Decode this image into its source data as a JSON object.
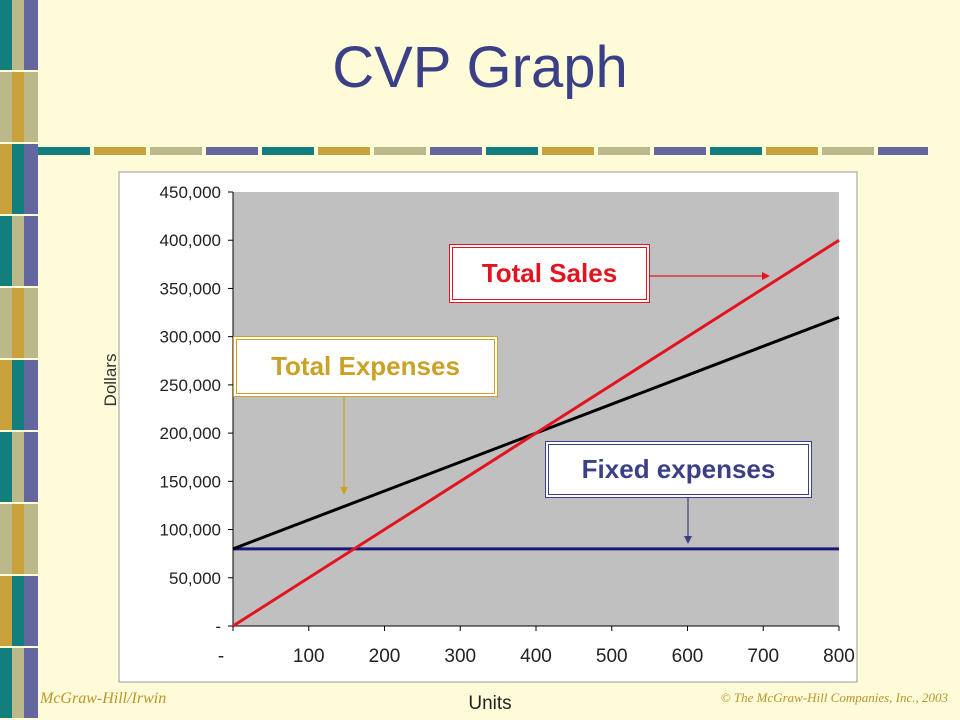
{
  "slide": {
    "title": "CVP Graph",
    "footer_left": "McGraw-Hill/Irwin",
    "footer_right": "© The McGraw-Hill Companies, Inc., 2003"
  },
  "colors": {
    "background": "#fdfbd8",
    "teal": "#127f7c",
    "gold": "#c9a23c",
    "sage": "#b9b98a",
    "navy": "#6466a0",
    "title": "#3b3f86",
    "plot_bg": "#c0c0c0",
    "sales": "#e2141f",
    "total_expenses": "#000000",
    "fixed_expenses": "#1a1a7a",
    "callout_expenses": "#c9a227"
  },
  "callouts": {
    "sales": "Total Sales",
    "expenses": "Total Expenses",
    "fixed": "Fixed expenses"
  },
  "chart_data": {
    "type": "line",
    "title": "",
    "xlabel": "Units",
    "ylabel": "Dollars",
    "xlim": [
      0,
      800
    ],
    "ylim": [
      0,
      450000
    ],
    "x_ticks": [
      0,
      100,
      200,
      300,
      400,
      500,
      600,
      700,
      800
    ],
    "x_tick_labels": [
      "-",
      "100",
      "200",
      "300",
      "400",
      "500",
      "600",
      "700",
      "800"
    ],
    "y_ticks": [
      0,
      50000,
      100000,
      150000,
      200000,
      250000,
      300000,
      350000,
      400000,
      450000
    ],
    "y_tick_labels": [
      "-",
      "50,000",
      "100,000",
      "150,000",
      "200,000",
      "250,000",
      "300,000",
      "350,000",
      "400,000",
      "450,000"
    ],
    "grid": false,
    "series": [
      {
        "name": "Total Sales",
        "color": "#e2141f",
        "x": [
          0,
          800
        ],
        "values": [
          0,
          400000
        ]
      },
      {
        "name": "Total Expenses",
        "color": "#000000",
        "x": [
          0,
          800
        ],
        "values": [
          80000,
          320000
        ]
      },
      {
        "name": "Fixed expenses",
        "color": "#1a1a7a",
        "x": [
          0,
          800
        ],
        "values": [
          80000,
          80000
        ]
      }
    ]
  }
}
